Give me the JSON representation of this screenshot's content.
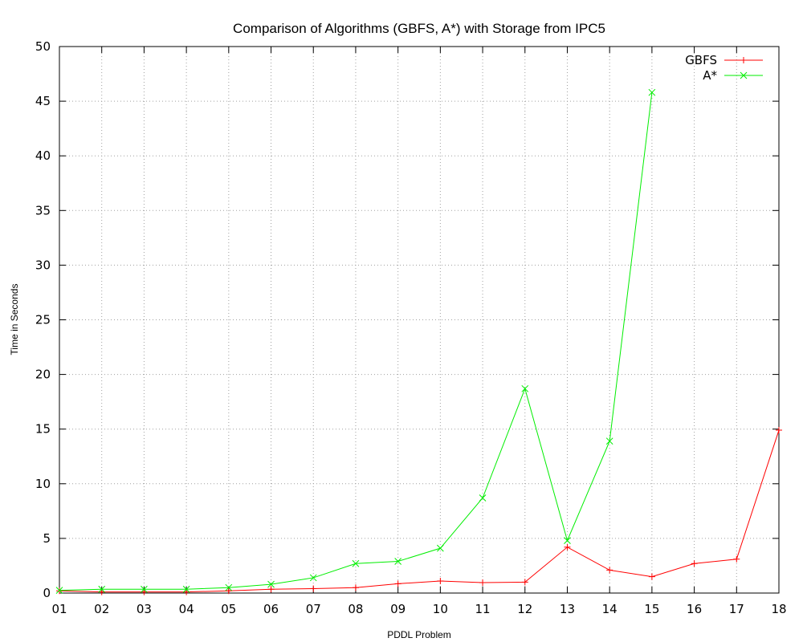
{
  "chart_data": {
    "type": "line",
    "title": "Comparison of Algorithms (GBFS, A*) with Storage from IPC5",
    "xlabel": "PDDL Problem",
    "ylabel": "Time in Seconds",
    "categories": [
      "01",
      "02",
      "03",
      "04",
      "05",
      "06",
      "07",
      "08",
      "09",
      "10",
      "11",
      "12",
      "13",
      "14",
      "15",
      "16",
      "17",
      "18"
    ],
    "ylim": [
      0,
      50
    ],
    "yticks": [
      "0",
      "5",
      "10",
      "15",
      "20",
      "25",
      "30",
      "35",
      "40",
      "45",
      "50"
    ],
    "grid": true,
    "legend_position": "top-right",
    "series": [
      {
        "name": "GBFS",
        "color": "#ff0000",
        "marker": "plus",
        "values": [
          0.2,
          0.1,
          0.1,
          0.1,
          0.2,
          0.35,
          0.4,
          0.5,
          0.85,
          1.1,
          0.95,
          1.0,
          4.2,
          2.1,
          1.5,
          2.7,
          3.1,
          14.9
        ]
      },
      {
        "name": "A*",
        "color": "#00ee00",
        "marker": "cross",
        "values": [
          0.25,
          0.35,
          0.35,
          0.35,
          0.5,
          0.8,
          1.4,
          2.7,
          2.9,
          4.1,
          8.7,
          18.7,
          4.8,
          13.9,
          45.8,
          null,
          null,
          null
        ]
      }
    ]
  }
}
